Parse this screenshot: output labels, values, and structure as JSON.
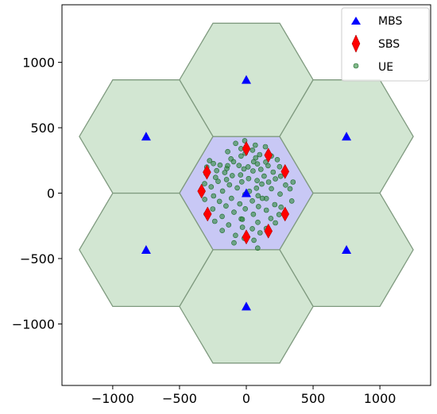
{
  "chart_data": {
    "type": "scatter",
    "title": "",
    "xlabel": "",
    "ylabel": "",
    "xlim": [
      -1380,
      1380
    ],
    "ylim": [
      -1470,
      1440
    ],
    "grid": false,
    "legend_position": "top-right",
    "x_ticks": [
      -1000,
      -500,
      0,
      500,
      1000
    ],
    "y_ticks": [
      -1000,
      -500,
      0,
      500,
      1000
    ],
    "x_tick_labels": [
      "−1000",
      "−500",
      "0",
      "500",
      "1000"
    ],
    "y_tick_labels": [
      "−1000",
      "−500",
      "0",
      "500",
      "1000"
    ],
    "cell_radius": 500,
    "cells": [
      {
        "role": "center",
        "x": 0,
        "y": 0
      },
      {
        "role": "neighbor",
        "x": 0,
        "y": 866
      },
      {
        "role": "neighbor",
        "x": 750,
        "y": 433
      },
      {
        "role": "neighbor",
        "x": 750,
        "y": -433
      },
      {
        "role": "neighbor",
        "x": 0,
        "y": -866
      },
      {
        "role": "neighbor",
        "x": -750,
        "y": -433
      },
      {
        "role": "neighbor",
        "x": -750,
        "y": 433
      }
    ],
    "colors": {
      "center_cell_fill": "#c8c8f5",
      "neighbor_cell_fill": "#d2e6d2",
      "cell_edge": "#7f9a7f",
      "mbs": "#0000ff",
      "sbs": "#ff0000",
      "ue": "#2e8b3e",
      "ue_edge": "#1f6a2a"
    },
    "series": [
      {
        "name": "MBS",
        "marker": "triangle",
        "points": [
          [
            0,
            0
          ],
          [
            0,
            866
          ],
          [
            750,
            433
          ],
          [
            750,
            -433
          ],
          [
            0,
            -866
          ],
          [
            -750,
            -433
          ],
          [
            -750,
            433
          ]
        ]
      },
      {
        "name": "SBS",
        "marker": "diamond",
        "points": [
          [
            0,
            340
          ],
          [
            165,
            290
          ],
          [
            290,
            165
          ],
          [
            -295,
            160
          ],
          [
            -335,
            15
          ],
          [
            -290,
            -160
          ],
          [
            290,
            -160
          ],
          [
            165,
            -290
          ],
          [
            0,
            -335
          ]
        ]
      },
      {
        "name": "UE",
        "marker": "circle",
        "points": [
          [
            -12,
            401
          ],
          [
            -80,
            380
          ],
          [
            67,
            367
          ],
          [
            143,
            355
          ],
          [
            -40,
            340
          ],
          [
            47,
            329
          ],
          [
            -139,
            317
          ],
          [
            -8,
            305
          ],
          [
            100,
            294
          ],
          [
            -39,
            283
          ],
          [
            188,
            284
          ],
          [
            -115,
            262
          ],
          [
            232,
            256
          ],
          [
            -275,
            248
          ],
          [
            -95,
            240
          ],
          [
            55,
            240
          ],
          [
            146,
            238
          ],
          [
            -246,
            226
          ],
          [
            83,
            223
          ],
          [
            -197,
            214
          ],
          [
            -55,
            211
          ],
          [
            163,
            210
          ],
          [
            13,
            201
          ],
          [
            249,
            202
          ],
          [
            -296,
            199
          ],
          [
            -146,
            189
          ],
          [
            -18,
            185
          ],
          [
            109,
            182
          ],
          [
            -222,
            172
          ],
          [
            50,
            170
          ],
          [
            -161,
            157
          ],
          [
            201,
            161
          ],
          [
            -300,
            148
          ],
          [
            -43,
            139
          ],
          [
            -105,
            134
          ],
          [
            133,
            130
          ],
          [
            257,
            129
          ],
          [
            -230,
            120
          ],
          [
            17,
            111
          ],
          [
            -148,
            104
          ],
          [
            218,
            109
          ],
          [
            81,
            96
          ],
          [
            -211,
            90
          ],
          [
            -34,
            86
          ],
          [
            167,
            85
          ],
          [
            350,
            85
          ],
          [
            -312,
            72
          ],
          [
            116,
            69
          ],
          [
            -126,
            63
          ],
          [
            294,
            62
          ],
          [
            -263,
            48
          ],
          [
            -68,
            40
          ],
          [
            76,
            38
          ],
          [
            188,
            34
          ],
          [
            327,
            33
          ],
          [
            -178,
            16
          ],
          [
            23,
            14
          ],
          [
            -10,
            -10
          ],
          [
            253,
            -7
          ],
          [
            -245,
            -21
          ],
          [
            88,
            -20
          ],
          [
            -111,
            -40
          ],
          [
            -311,
            -48
          ],
          [
            150,
            -41
          ],
          [
            45,
            -59
          ],
          [
            -201,
            -63
          ],
          [
            340,
            -60
          ],
          [
            -49,
            -82
          ],
          [
            213,
            -88
          ],
          [
            -152,
            -98
          ],
          [
            91,
            -102
          ],
          [
            260,
            -107
          ],
          [
            -251,
            -121
          ],
          [
            -8,
            -120
          ],
          [
            150,
            -130
          ],
          [
            -92,
            -146
          ],
          [
            -301,
            -160
          ],
          [
            53,
            -162
          ],
          [
            245,
            -164
          ],
          [
            -181,
            -178
          ],
          [
            184,
            -193
          ],
          [
            -38,
            -197
          ],
          [
            -236,
            -215
          ],
          [
            86,
            -223
          ],
          [
            218,
            -227
          ],
          [
            -132,
            -243
          ],
          [
            -29,
            -261
          ],
          [
            45,
            -272
          ],
          [
            150,
            -270
          ],
          [
            -180,
            -286
          ],
          [
            103,
            -303
          ],
          [
            -81,
            -323
          ],
          [
            -16,
            -345
          ],
          [
            57,
            -360
          ],
          [
            -92,
            -380
          ],
          [
            85,
            -420
          ],
          [
            -30,
            -200
          ],
          [
            120,
            -40
          ],
          [
            -140,
            210
          ],
          [
            70,
            270
          ]
        ]
      }
    ]
  }
}
